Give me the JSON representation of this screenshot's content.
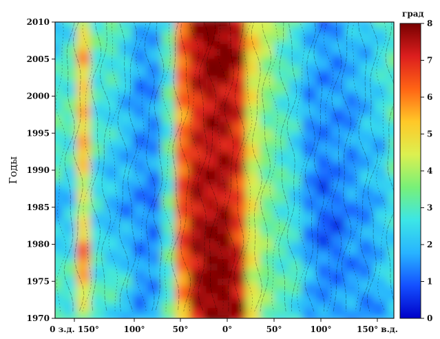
{
  "chart_data": {
    "type": "heatmap",
    "title": "",
    "ylabel": "Годы",
    "colorbar_label": "град",
    "x_ticks": [
      "0 з.д. 150°",
      "100°",
      "50°",
      "0°",
      "50°",
      "100°",
      "150° в.д."
    ],
    "y_ticks": [
      1970,
      1975,
      1980,
      1985,
      1990,
      1995,
      2000,
      2005,
      2010
    ],
    "ylim": [
      1970,
      2010
    ],
    "colorbar_ticks": [
      0,
      1,
      2,
      3,
      4,
      5,
      6,
      7,
      8
    ],
    "colorbar_range": [
      0,
      8
    ],
    "colormap": [
      "#0000c8",
      "#1450ff",
      "#28b4ff",
      "#3ce6e6",
      "#78f078",
      "#dcf050",
      "#ffc828",
      "#ff6414",
      "#dc1e1e",
      "#780000"
    ],
    "grid": false,
    "x_categories": [
      "-180",
      "-165",
      "-150",
      "-135",
      "-120",
      "-105",
      "-90",
      "-75",
      "-60",
      "-45",
      "-30",
      "-15",
      "0",
      "15",
      "30",
      "45",
      "60",
      "75",
      "90",
      "105",
      "120",
      "135",
      "150",
      "165",
      "180"
    ],
    "values_by_year": {
      "1970": [
        3,
        2.5,
        3.5,
        2.5,
        2.5,
        2,
        1.5,
        2,
        3,
        5,
        7.5,
        8,
        8,
        7.5,
        4.5,
        3.5,
        3,
        2.5,
        1.5,
        1.5,
        1.5,
        2,
        1.5,
        1.5,
        2
      ],
      "1975": [
        3,
        3,
        5.5,
        3,
        3,
        2.5,
        1.5,
        1.5,
        3,
        6,
        7.5,
        8,
        8,
        7.5,
        4.5,
        3.5,
        3,
        3,
        2,
        1.5,
        1.5,
        1.5,
        1.5,
        2,
        2.5
      ],
      "1980": [
        2.5,
        2.5,
        6,
        2.5,
        2,
        2,
        1.5,
        1.5,
        3,
        6.5,
        7.5,
        8,
        8,
        7,
        4.5,
        3.5,
        3,
        2.5,
        1.5,
        1,
        1,
        1.5,
        1.5,
        2,
        2.5
      ],
      "1985": [
        1.5,
        2,
        4,
        2.5,
        2,
        1.5,
        1.5,
        1,
        3,
        6.5,
        7.5,
        7.5,
        7.5,
        6.5,
        4.5,
        3.5,
        3,
        2.5,
        1.5,
        1,
        1,
        1.5,
        1.5,
        2,
        2.5
      ],
      "1990": [
        3,
        2.5,
        5,
        2.5,
        2,
        2,
        1.5,
        1.5,
        3,
        6.5,
        7.5,
        7.5,
        7.5,
        7,
        4.5,
        3.5,
        3,
        2.5,
        1.5,
        1,
        1.5,
        1.5,
        2,
        2,
        3
      ],
      "1995": [
        3,
        3,
        5.5,
        3,
        2.5,
        2,
        1.5,
        1.5,
        3,
        6,
        7,
        7.5,
        7.5,
        7,
        4.5,
        3.5,
        3,
        2.5,
        1.5,
        1.5,
        1.5,
        1.5,
        2,
        2,
        3
      ],
      "2000": [
        3,
        3,
        5,
        2.5,
        2.5,
        2,
        1.5,
        1.5,
        3,
        6,
        7,
        7.5,
        7.5,
        7,
        4.5,
        3.5,
        3,
        2.5,
        1.5,
        1.5,
        1.5,
        1.5,
        2,
        2.5,
        3
      ],
      "2005": [
        2.5,
        3,
        5.5,
        3,
        3,
        2.5,
        1.5,
        1.5,
        3,
        6.5,
        7.5,
        8,
        8,
        7.5,
        5,
        4,
        3,
        2.5,
        2,
        1.5,
        1.5,
        2,
        2,
        2.5,
        3
      ],
      "2010": [
        2,
        2.5,
        4.5,
        3,
        3,
        2.5,
        2,
        2,
        3,
        6,
        7.5,
        8,
        8,
        7.5,
        5,
        4,
        3.5,
        3,
        2,
        1.5,
        1.5,
        2,
        2,
        2.5,
        3
      ]
    }
  }
}
